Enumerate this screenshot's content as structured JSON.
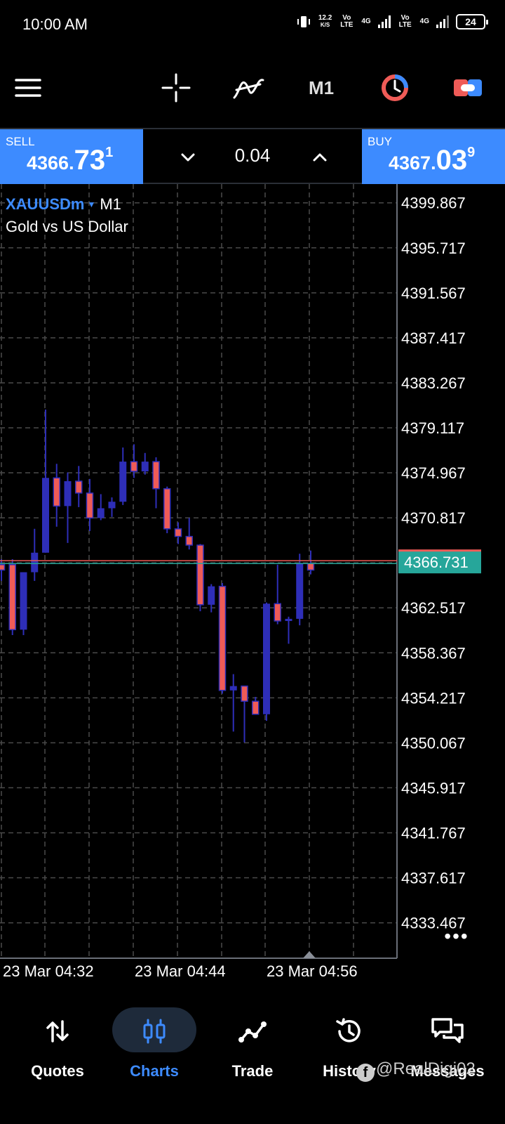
{
  "status_bar": {
    "time": "10:00 AM",
    "net_speed": "12.2",
    "net_unit": "K/S",
    "sim1": "Vo LTE",
    "sim1_net": "4G",
    "sim2": "Vo LTE",
    "sim2_net": "4G",
    "battery": "24"
  },
  "toolbar": {
    "period": "M1",
    "icons": [
      "menu-icon",
      "crosshair-icon",
      "indicators-icon",
      "clock-icon",
      "trade-icon"
    ]
  },
  "trade_bar": {
    "sell_label": "SELL",
    "sell_small": "4366.",
    "sell_big": "73",
    "sell_sup": "1",
    "buy_label": "BUY",
    "buy_small": "4367.",
    "buy_big": "03",
    "buy_sup": "9",
    "volume": "0.04"
  },
  "chart": {
    "symbol": "XAUUSDm",
    "timeframe": "M1",
    "description": "Gold vs US Dollar",
    "current_price": "4366.731",
    "more": "•••"
  },
  "chart_data": {
    "type": "candlestick",
    "title": "XAUUSDm M1",
    "subtitle": "Gold vs US Dollar",
    "y_ticks": [
      "4399.867",
      "4395.717",
      "4391.567",
      "4387.417",
      "4383.267",
      "4379.117",
      "4374.967",
      "4370.817",
      "4362.517",
      "4358.367",
      "4354.217",
      "4350.067",
      "4345.917",
      "4341.767",
      "4337.617",
      "4333.467"
    ],
    "x_ticks": [
      "23 Mar 04:32",
      "23 Mar 04:44",
      "23 Mar 04:56"
    ],
    "ylim": [
      4330.2,
      4401.6
    ],
    "current_price": 4366.731,
    "colors": {
      "bull": "#2e2eb8",
      "bear": "#ef5b57",
      "bear_outline": "#2e2eb8",
      "price_line": "#ef5b57",
      "grid": "#4a4a4a",
      "price_label_bg": "#26a69a"
    },
    "candles": [
      {
        "o": 4366.5,
        "h": 4367.0,
        "l": 4365.0,
        "c": 4366.0
      },
      {
        "o": 4366.5,
        "h": 4367.0,
        "l": 4360.0,
        "c": 4360.5
      },
      {
        "o": 4360.5,
        "h": 4365.8,
        "l": 4360.0,
        "c": 4365.8
      },
      {
        "o": 4365.8,
        "h": 4369.8,
        "l": 4365.0,
        "c": 4367.6
      },
      {
        "o": 4367.6,
        "h": 4380.8,
        "l": 4367.6,
        "c": 4374.5
      },
      {
        "o": 4374.5,
        "h": 4375.8,
        "l": 4370.0,
        "c": 4371.9
      },
      {
        "o": 4371.9,
        "h": 4375.0,
        "l": 4368.5,
        "c": 4374.2
      },
      {
        "o": 4374.2,
        "h": 4375.6,
        "l": 4371.8,
        "c": 4373.1
      },
      {
        "o": 4373.1,
        "h": 4374.4,
        "l": 4369.6,
        "c": 4370.8
      },
      {
        "o": 4370.8,
        "h": 4373.0,
        "l": 4370.6,
        "c": 4371.7
      },
      {
        "o": 4371.7,
        "h": 4372.7,
        "l": 4370.9,
        "c": 4372.3
      },
      {
        "o": 4372.3,
        "h": 4377.3,
        "l": 4372.0,
        "c": 4376.0
      },
      {
        "o": 4376.0,
        "h": 4377.6,
        "l": 4374.5,
        "c": 4375.1
      },
      {
        "o": 4375.1,
        "h": 4376.8,
        "l": 4374.8,
        "c": 4376.0
      },
      {
        "o": 4376.0,
        "h": 4376.4,
        "l": 4371.7,
        "c": 4373.5
      },
      {
        "o": 4373.5,
        "h": 4373.7,
        "l": 4369.4,
        "c": 4369.8
      },
      {
        "o": 4369.8,
        "h": 4370.4,
        "l": 4368.4,
        "c": 4369.1
      },
      {
        "o": 4369.1,
        "h": 4370.8,
        "l": 4367.9,
        "c": 4368.3
      },
      {
        "o": 4368.3,
        "h": 4368.4,
        "l": 4362.2,
        "c": 4362.8
      },
      {
        "o": 4362.8,
        "h": 4364.7,
        "l": 4362.1,
        "c": 4364.5
      },
      {
        "o": 4364.5,
        "h": 4364.8,
        "l": 4354.6,
        "c": 4354.9
      },
      {
        "o": 4354.9,
        "h": 4356.4,
        "l": 4351.1,
        "c": 4355.3
      },
      {
        "o": 4355.3,
        "h": 4355.3,
        "l": 4350.1,
        "c": 4353.9
      },
      {
        "o": 4353.9,
        "h": 4354.3,
        "l": 4352.7,
        "c": 4352.7
      },
      {
        "o": 4352.7,
        "h": 4363.0,
        "l": 4352.1,
        "c": 4362.9
      },
      {
        "o": 4362.9,
        "h": 4366.5,
        "l": 4361.0,
        "c": 4361.3
      },
      {
        "o": 4361.3,
        "h": 4361.7,
        "l": 4359.2,
        "c": 4361.5
      },
      {
        "o": 4361.5,
        "h": 4367.5,
        "l": 4360.9,
        "c": 4366.6
      },
      {
        "o": 4366.6,
        "h": 4367.8,
        "l": 4365.6,
        "c": 4366.0
      }
    ]
  },
  "nav": {
    "quotes": "Quotes",
    "charts": "Charts",
    "trade": "Trade",
    "history": "History",
    "messages": "Messages"
  },
  "watermark": "@RealDigi02"
}
